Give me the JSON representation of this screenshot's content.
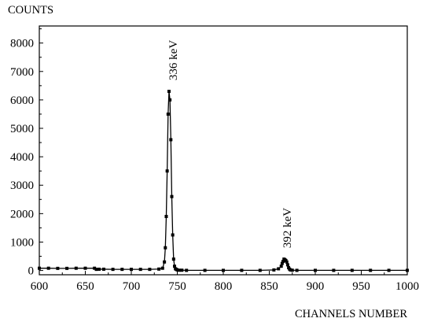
{
  "chart_data": {
    "type": "line",
    "title": "",
    "ylabel": "COUNTS",
    "xlabel": "CHANNELS NUMBER",
    "xlim": [
      600,
      1000
    ],
    "ylim": [
      -150,
      8600
    ],
    "x_ticks": [
      600,
      650,
      700,
      750,
      800,
      850,
      900,
      950,
      1000
    ],
    "x_tick_labels": [
      "600",
      "650",
      "700",
      "750",
      "800",
      "850",
      "900",
      "950",
      "1000"
    ],
    "y_ticks": [
      0,
      1000,
      2000,
      3000,
      4000,
      5000,
      6000,
      7000,
      8000
    ],
    "y_tick_labels": [
      "0",
      "1000",
      "2000",
      "3000",
      "4000",
      "5000",
      "6000",
      "7000",
      "8000"
    ],
    "grid": false,
    "legend": "none",
    "line_color": "#000000",
    "marker": "square",
    "series": [
      {
        "x": [
          600,
          610,
          620,
          630,
          640,
          650,
          660,
          662,
          665,
          670,
          680,
          690,
          700,
          710,
          720,
          730,
          734,
          736,
          737,
          738,
          739,
          740,
          741,
          742,
          743,
          744,
          745,
          746,
          747,
          748,
          749,
          750,
          752,
          755,
          760,
          780,
          800,
          820,
          840,
          855,
          860,
          863,
          864,
          865,
          866,
          867,
          868,
          869,
          870,
          871,
          872,
          873,
          875,
          880,
          900,
          920,
          940,
          960,
          980,
          1000
        ],
        "y": [
          80,
          80,
          75,
          75,
          80,
          80,
          80,
          40,
          45,
          45,
          40,
          40,
          40,
          40,
          40,
          50,
          80,
          300,
          800,
          1900,
          3500,
          5500,
          6300,
          6000,
          4600,
          2600,
          1250,
          400,
          150,
          60,
          40,
          20,
          10,
          10,
          5,
          5,
          5,
          5,
          5,
          20,
          60,
          150,
          250,
          320,
          400,
          380,
          350,
          300,
          200,
          100,
          50,
          20,
          10,
          5,
          5,
          5,
          5,
          5,
          5,
          5
        ]
      }
    ],
    "annotations": [
      {
        "text": "336 keV",
        "x": 742,
        "y": 6300
      },
      {
        "text": "392 keV",
        "x": 866,
        "y": 400
      }
    ]
  }
}
